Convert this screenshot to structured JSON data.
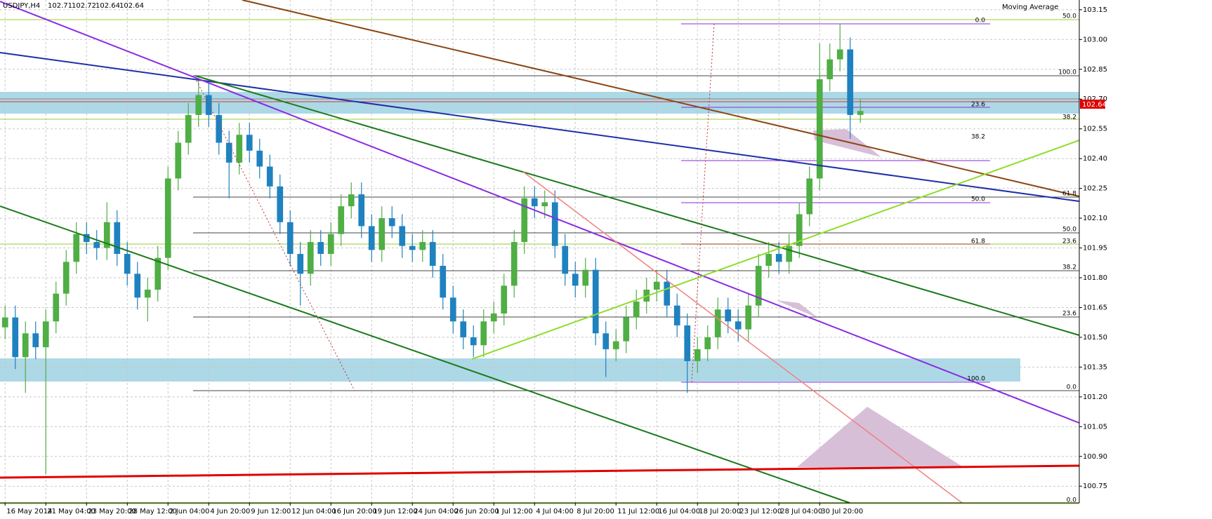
{
  "chart_data": {
    "type": "candlestick",
    "title": "USDJPY,H4",
    "quote": [
      102.71,
      102.72,
      102.64,
      102.64
    ],
    "indicator": "Moving Average",
    "colors": {
      "up": "#4fae44",
      "down": "#1f82bf"
    },
    "grid": true,
    "xlim": [
      -0.5,
      105.5
    ],
    "xticks": [
      {
        "value": 0,
        "label": "16 May 2014"
      },
      {
        "value": 4,
        "label": "21 May 04:00"
      },
      {
        "value": 8,
        "label": "23 May 20:00"
      },
      {
        "value": 12,
        "label": "28 May 12:00"
      },
      {
        "value": 16,
        "label": "2 Jun 04:00"
      },
      {
        "value": 20,
        "label": "4 Jun 20:00"
      },
      {
        "value": 24,
        "label": "9 Jun 12:00"
      },
      {
        "value": 28,
        "label": "12 Jun 04:00"
      },
      {
        "value": 32,
        "label": "16 Jun 20:00"
      },
      {
        "value": 36,
        "label": "19 Jun 12:00"
      },
      {
        "value": 40,
        "label": "24 Jun 04:00"
      },
      {
        "value": 44,
        "label": "26 Jun 20:00"
      },
      {
        "value": 48,
        "label": "1 Jul 12:00"
      },
      {
        "value": 52,
        "label": "4 Jul 04:00"
      },
      {
        "value": 56,
        "label": "8 Jul 20:00"
      },
      {
        "value": 60,
        "label": "11 Jul 12:00"
      },
      {
        "value": 64,
        "label": "16 Jul 04:00"
      },
      {
        "value": 68,
        "label": "18 Jul 20:00"
      },
      {
        "value": 72,
        "label": "23 Jul 12:00"
      },
      {
        "value": 76,
        "label": "28 Jul 04:00"
      },
      {
        "value": 80,
        "label": "30 Jul 20:00"
      }
    ],
    "ylim": [
      100.666,
      103.199
    ],
    "yticks": [
      100.75,
      {
        "value": 100.9,
        "label": "100.90"
      },
      101.05,
      {
        "value": 101.2,
        "label": "101.20"
      },
      101.35,
      {
        "value": 101.5,
        "label": "101.50"
      },
      101.65,
      {
        "value": 101.8,
        "label": "101.80"
      },
      101.95,
      {
        "value": 102.1,
        "label": "102.10"
      },
      102.25,
      {
        "value": 102.4,
        "label": "102.40"
      },
      102.55,
      {
        "value": 102.7,
        "label": "102.70"
      },
      102.85,
      {
        "value": 103.0,
        "label": "103.00"
      },
      103.15
    ],
    "open": [
      101.55,
      101.6,
      101.4,
      101.52,
      101.45,
      101.58,
      101.72,
      101.88,
      102.02,
      101.98,
      101.95,
      102.08,
      101.92,
      101.82,
      101.7,
      101.74,
      101.9,
      102.3,
      102.48,
      102.62,
      102.72,
      102.62,
      102.48,
      102.38,
      102.52,
      102.44,
      102.36,
      102.26,
      102.08,
      101.92,
      101.82,
      101.98,
      101.92,
      102.02,
      102.16,
      102.22,
      102.06,
      101.94,
      102.1,
      102.06,
      101.96,
      101.94,
      101.98,
      101.86,
      101.7,
      101.58,
      101.5,
      101.46,
      101.58,
      101.62,
      101.76,
      101.98,
      102.2,
      102.16,
      102.18,
      101.96,
      101.82,
      101.76,
      101.84,
      101.52,
      101.44,
      101.48,
      101.6,
      101.68,
      101.74,
      101.78,
      101.66,
      101.56,
      101.38,
      101.44,
      101.5,
      101.64,
      101.58,
      101.54,
      101.66,
      101.86,
      101.92,
      101.88,
      101.96,
      102.12,
      102.3,
      102.8,
      102.9,
      102.95,
      102.62
    ],
    "high": [
      101.66,
      101.66,
      101.58,
      101.58,
      101.64,
      101.78,
      101.94,
      102.08,
      102.08,
      102.04,
      102.18,
      102.14,
      101.98,
      101.88,
      101.8,
      101.96,
      102.36,
      102.54,
      102.68,
      102.8,
      102.78,
      102.68,
      102.54,
      102.58,
      102.58,
      102.5,
      102.42,
      102.32,
      102.14,
      101.98,
      102.04,
      102.04,
      102.08,
      102.22,
      102.28,
      102.28,
      102.12,
      102.16,
      102.16,
      102.12,
      102.02,
      102.04,
      102.04,
      101.92,
      101.76,
      101.64,
      101.56,
      101.64,
      101.68,
      101.82,
      102.04,
      102.26,
      102.26,
      102.24,
      102.24,
      102.02,
      101.88,
      101.9,
      101.9,
      101.58,
      101.54,
      101.66,
      101.74,
      101.8,
      101.84,
      101.84,
      101.72,
      101.62,
      101.5,
      101.56,
      101.7,
      101.7,
      101.64,
      101.72,
      101.92,
      101.98,
      101.98,
      102.02,
      102.18,
      102.36,
      102.98,
      102.98,
      103.08,
      103.01,
      102.7
    ],
    "low": [
      101.49,
      101.34,
      101.22,
      101.39,
      100.81,
      101.52,
      101.66,
      101.82,
      101.92,
      101.89,
      101.89,
      101.86,
      101.76,
      101.64,
      101.58,
      101.68,
      101.84,
      102.24,
      102.42,
      102.56,
      102.56,
      102.42,
      102.2,
      102.32,
      102.38,
      102.3,
      102.2,
      102.02,
      101.86,
      101.66,
      101.76,
      101.86,
      101.86,
      101.96,
      102.1,
      102.0,
      101.88,
      101.88,
      102.0,
      101.9,
      101.88,
      101.88,
      101.8,
      101.64,
      101.52,
      101.44,
      101.4,
      101.4,
      101.52,
      101.56,
      101.7,
      101.92,
      102.1,
      102.1,
      101.9,
      101.76,
      101.7,
      101.7,
      101.46,
      101.3,
      101.38,
      101.42,
      101.54,
      101.62,
      101.68,
      101.6,
      101.5,
      101.22,
      101.32,
      101.38,
      101.44,
      101.52,
      101.48,
      101.48,
      101.6,
      101.8,
      101.82,
      101.82,
      101.9,
      102.06,
      102.24,
      102.74,
      102.84,
      102.5,
      102.58
    ],
    "close": [
      101.6,
      101.4,
      101.52,
      101.45,
      101.58,
      101.72,
      101.88,
      102.02,
      101.98,
      101.95,
      102.08,
      101.92,
      101.82,
      101.7,
      101.74,
      101.9,
      102.3,
      102.48,
      102.62,
      102.72,
      102.62,
      102.48,
      102.38,
      102.52,
      102.44,
      102.36,
      102.26,
      102.08,
      101.92,
      101.82,
      101.98,
      101.92,
      102.02,
      102.16,
      102.22,
      102.06,
      101.94,
      102.1,
      102.06,
      101.96,
      101.94,
      101.98,
      101.86,
      101.7,
      101.58,
      101.5,
      101.46,
      101.58,
      101.62,
      101.76,
      101.98,
      102.2,
      102.16,
      102.18,
      101.96,
      101.82,
      101.76,
      101.84,
      101.52,
      101.44,
      101.48,
      101.6,
      101.68,
      101.74,
      101.78,
      101.66,
      101.56,
      101.38,
      101.44,
      101.5,
      101.64,
      101.58,
      101.54,
      101.66,
      101.86,
      101.92,
      101.88,
      101.96,
      102.12,
      102.3,
      102.8,
      102.9,
      102.95,
      102.62,
      102.64
    ],
    "fib_purple": [
      "0.0",
      "23.6",
      "38.2",
      "50.0",
      "61.8",
      "100.0"
    ],
    "fib_black": [
      "100.0",
      "61.8",
      "50.0",
      "38.2",
      "23.6",
      "0.0"
    ],
    "fib_green": [
      "50.0",
      "38.2",
      "23.6",
      "0.0"
    ]
  }
}
